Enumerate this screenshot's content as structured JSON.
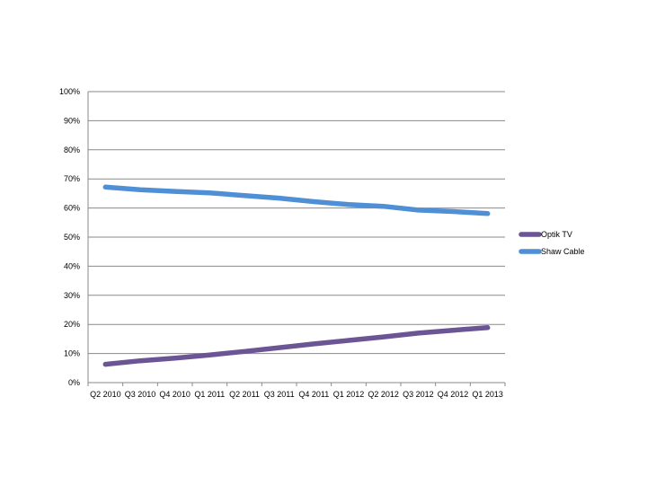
{
  "chart_data": {
    "type": "line",
    "categories": [
      "Q2 2010",
      "Q3 2010",
      "Q4 2010",
      "Q1 2011",
      "Q2 2011",
      "Q3 2011",
      "Q4 2011",
      "Q1 2012",
      "Q2 2012",
      "Q3 2012",
      "Q4 2012",
      "Q1 2013"
    ],
    "series": [
      {
        "name": "Optik TV",
        "color": "#6b5594",
        "values": [
          6.3,
          7.5,
          8.4,
          9.5,
          10.7,
          12.0,
          13.3,
          14.5,
          15.7,
          17.0,
          18.0,
          18.9
        ]
      },
      {
        "name": "Shaw Cable",
        "color": "#4f8fd6",
        "values": [
          67.2,
          66.3,
          65.7,
          65.2,
          64.3,
          63.4,
          62.2,
          61.2,
          60.6,
          59.3,
          58.8,
          58.1
        ]
      }
    ],
    "y_ticks": [
      "0%",
      "10%",
      "20%",
      "30%",
      "40%",
      "50%",
      "60%",
      "70%",
      "80%",
      "90%",
      "100%"
    ],
    "ylim": [
      0,
      100
    ],
    "grid": true,
    "legend": "right"
  }
}
